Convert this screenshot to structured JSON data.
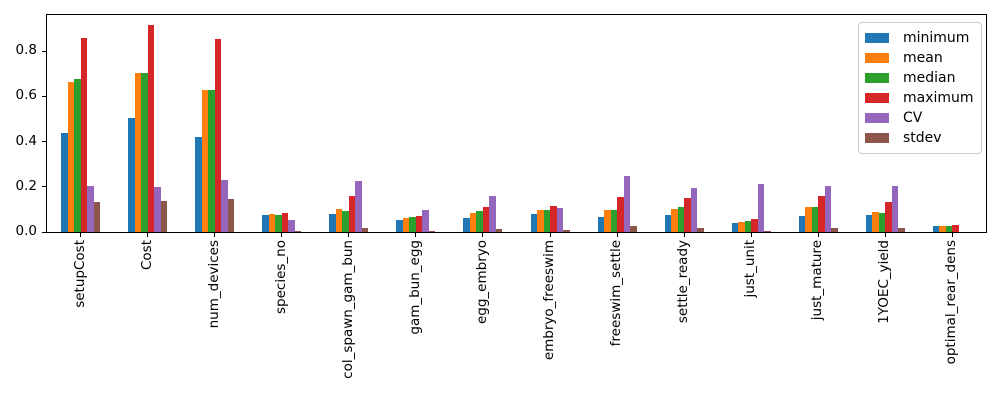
{
  "chart_data": {
    "type": "bar",
    "title": "",
    "xlabel": "",
    "ylabel": "",
    "grid": false,
    "legend_position": "upper right",
    "background_color": "#ffffff",
    "axis_color": "#000000",
    "ylim": [
      0,
      0.96
    ],
    "ytick_labels": [
      "0.0",
      "0.2",
      "0.4",
      "0.6",
      "0.8"
    ],
    "ytick_values": [
      0.0,
      0.2,
      0.4,
      0.6,
      0.8
    ],
    "categories": [
      "setupCost",
      "Cost",
      "num_devices",
      "species_no",
      "col_spawn_gam_bun",
      "gam_bun_egg",
      "egg_embryo",
      "embryo_freeswim",
      "freeswim_settle",
      "settle_ready",
      "just_unit",
      "just_mature",
      "1YOEC_yield",
      "optimal_rear_dens"
    ],
    "series": [
      {
        "name": "minimum",
        "color": "#1f77b4",
        "values": [
          0.44,
          0.505,
          0.42,
          0.075,
          0.082,
          0.053,
          0.063,
          0.08,
          0.068,
          0.075,
          0.038,
          0.071,
          0.075,
          0.028
        ]
      },
      {
        "name": "mean",
        "color": "#ff7f0e",
        "values": [
          0.665,
          0.705,
          0.63,
          0.08,
          0.1,
          0.06,
          0.084,
          0.096,
          0.096,
          0.102,
          0.046,
          0.112,
          0.087,
          0.028
        ]
      },
      {
        "name": "median",
        "color": "#2ca02c",
        "values": [
          0.675,
          0.705,
          0.63,
          0.077,
          0.093,
          0.068,
          0.094,
          0.096,
          0.096,
          0.109,
          0.047,
          0.109,
          0.084,
          0.028
        ]
      },
      {
        "name": "maximum",
        "color": "#d62728",
        "values": [
          0.858,
          0.915,
          0.855,
          0.085,
          0.16,
          0.072,
          0.112,
          0.115,
          0.155,
          0.152,
          0.056,
          0.158,
          0.134,
          0.029
        ]
      },
      {
        "name": "CV",
        "color": "#9467bd",
        "values": [
          0.205,
          0.2,
          0.23,
          0.054,
          0.225,
          0.099,
          0.161,
          0.106,
          0.246,
          0.193,
          0.211,
          0.204,
          0.202,
          0.0
        ]
      },
      {
        "name": "stdev",
        "color": "#8c564b",
        "values": [
          0.135,
          0.139,
          0.145,
          0.006,
          0.02,
          0.005,
          0.012,
          0.007,
          0.025,
          0.02,
          0.006,
          0.02,
          0.016,
          0.0
        ]
      }
    ]
  }
}
